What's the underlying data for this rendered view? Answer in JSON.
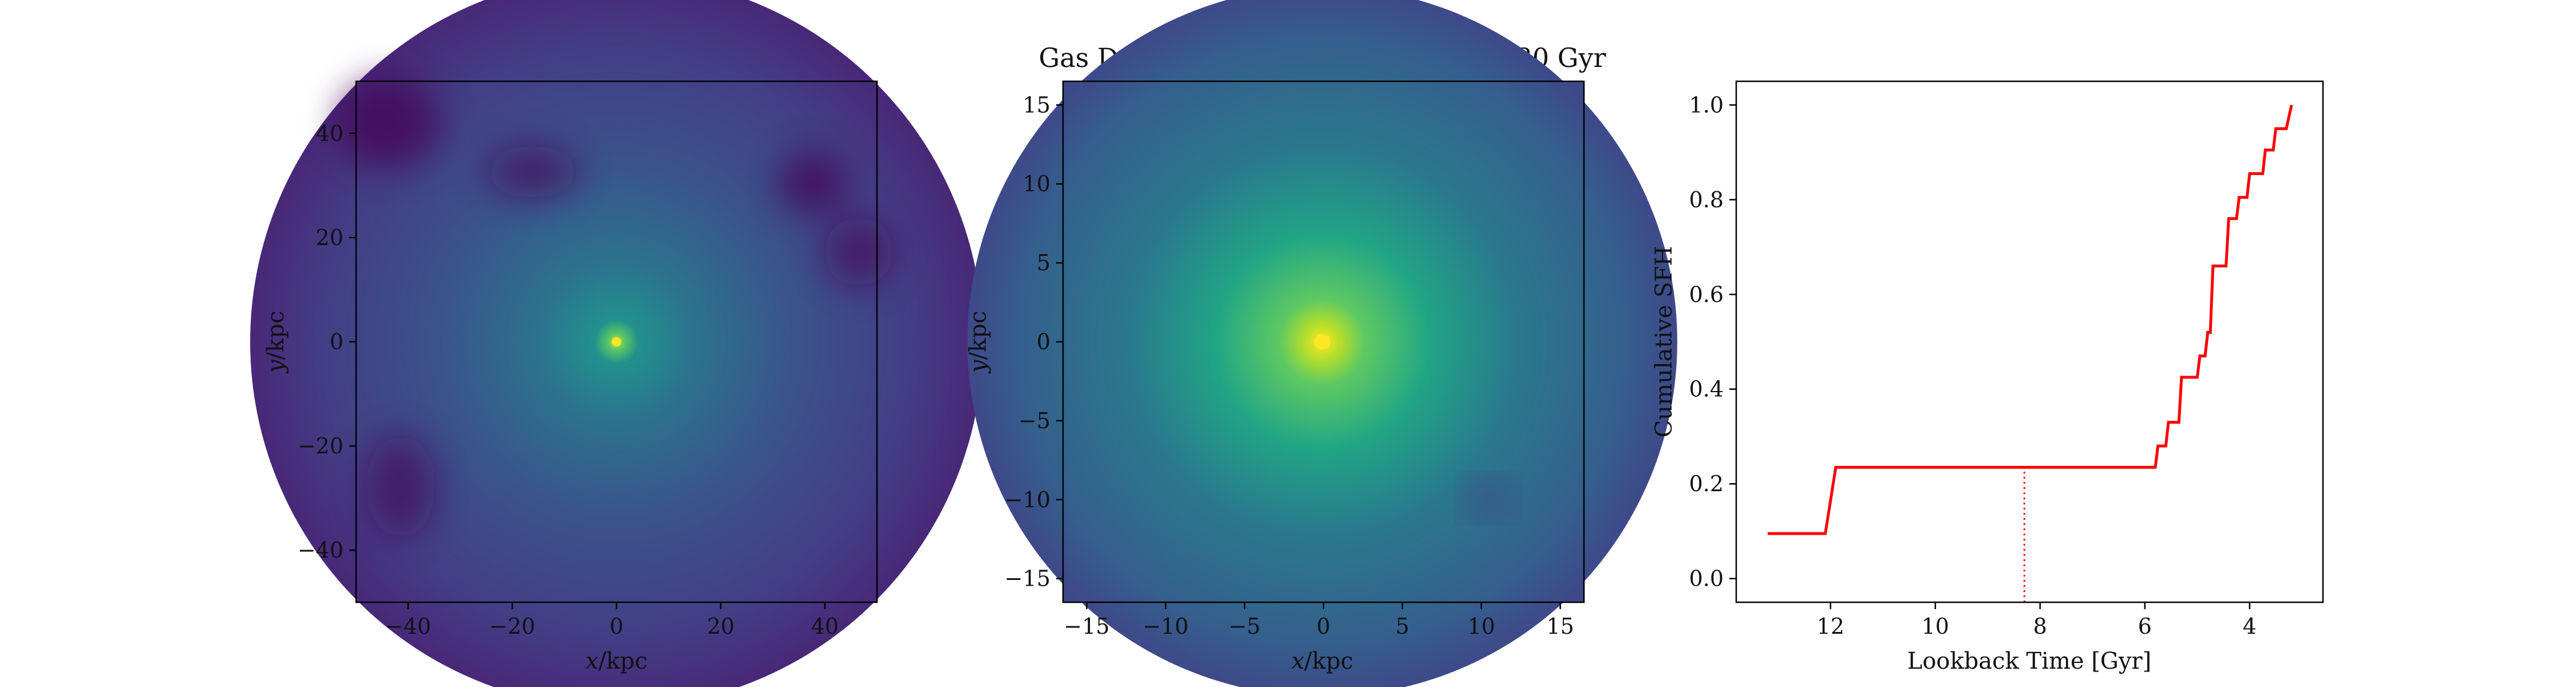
{
  "figure_title": "Gas Density, T = 5.50 Gyr, LBT = 8.30 Gyr",
  "chart_data": [
    {
      "type": "heatmap",
      "name": "gas-density-wide",
      "xlabel": "x/kpc",
      "ylabel": "y/kpc",
      "xlim": [
        -50,
        50
      ],
      "ylim": [
        -50,
        50
      ],
      "xticks": [
        -40,
        -20,
        0,
        20,
        40
      ],
      "yticks": [
        -40,
        -20,
        0,
        20,
        40
      ],
      "colormap": "viridis",
      "center": [
        0,
        0
      ]
    },
    {
      "type": "heatmap",
      "name": "gas-density-zoom",
      "title": "Gas Density, T = 5.50 Gyr, LBT = 8.30 Gyr",
      "xlabel": "x/kpc",
      "ylabel": "y/kpc",
      "xlim": [
        -16.5,
        16.5
      ],
      "ylim": [
        -16.5,
        16.5
      ],
      "xticks": [
        -15,
        -10,
        -5,
        0,
        5,
        10,
        15
      ],
      "yticks": [
        -15,
        -10,
        -5,
        0,
        5,
        10,
        15
      ],
      "colormap": "viridis",
      "center": [
        0,
        0
      ]
    },
    {
      "type": "line",
      "name": "cumulative-sfh",
      "xlabel": "Lookback Time [Gyr]",
      "ylabel": "Cumulative SFH",
      "xlim": [
        13.8,
        2.6
      ],
      "ylim": [
        -0.05,
        1.05
      ],
      "xticks": [
        12,
        10,
        8,
        6,
        4
      ],
      "yticks": [
        0.0,
        0.2,
        0.4,
        0.6,
        0.8,
        1.0
      ],
      "series": [
        {
          "color": "#ff0000",
          "points": [
            [
              13.2,
              0.095
            ],
            [
              12.1,
              0.095
            ],
            [
              11.9,
              0.235
            ],
            [
              5.8,
              0.235
            ],
            [
              5.75,
              0.28
            ],
            [
              5.6,
              0.28
            ],
            [
              5.55,
              0.33
            ],
            [
              5.35,
              0.33
            ],
            [
              5.3,
              0.425
            ],
            [
              5.0,
              0.425
            ],
            [
              4.95,
              0.47
            ],
            [
              4.85,
              0.47
            ],
            [
              4.8,
              0.52
            ],
            [
              4.75,
              0.52
            ],
            [
              4.7,
              0.66
            ],
            [
              4.45,
              0.66
            ],
            [
              4.4,
              0.76
            ],
            [
              4.25,
              0.76
            ],
            [
              4.2,
              0.805
            ],
            [
              4.05,
              0.805
            ],
            [
              4.0,
              0.855
            ],
            [
              3.75,
              0.855
            ],
            [
              3.7,
              0.905
            ],
            [
              3.55,
              0.905
            ],
            [
              3.5,
              0.95
            ],
            [
              3.3,
              0.95
            ],
            [
              3.2,
              1.0
            ]
          ]
        }
      ],
      "marker_line": {
        "x": 8.3,
        "style": "dotted",
        "color": "#ff0000",
        "y_range": [
          -0.05,
          0.235
        ]
      },
      "xtick_labels": [
        "12",
        "10",
        "8",
        "6",
        "4"
      ],
      "ytick_labels": [
        "0.0",
        "0.2",
        "0.4",
        "0.6",
        "0.8",
        "1.0"
      ]
    }
  ]
}
